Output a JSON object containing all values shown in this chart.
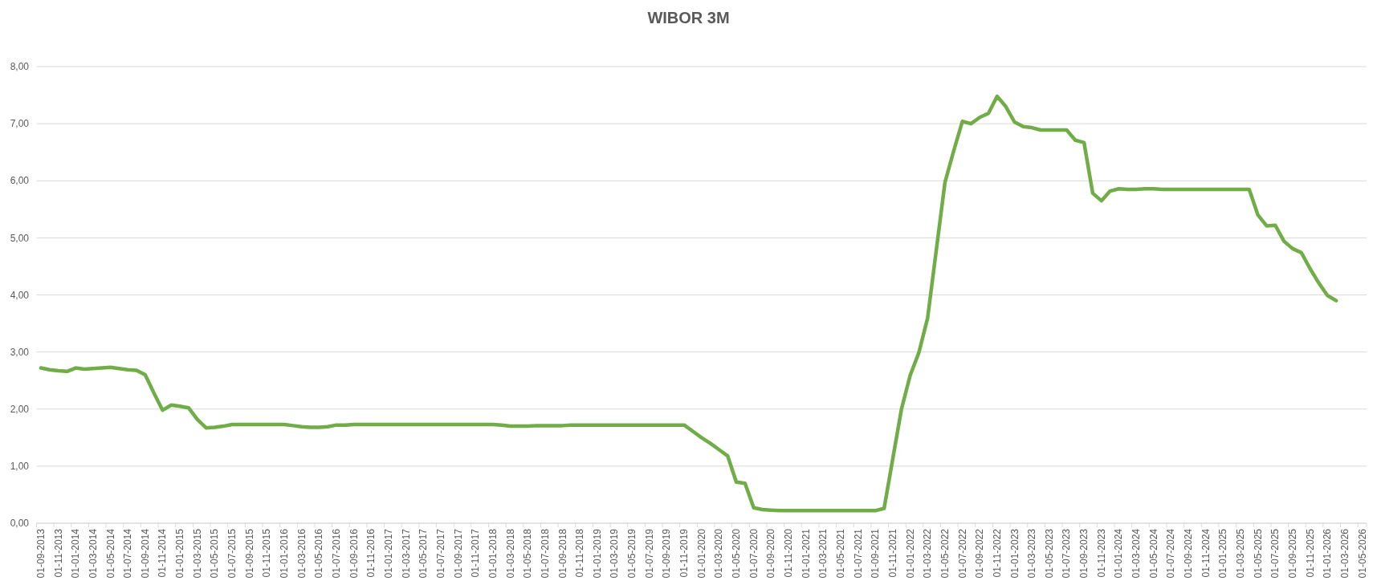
{
  "chart_data": {
    "type": "line",
    "title": "WIBOR 3M",
    "categories": [
      "01-09-2013",
      null,
      "01-11-2013",
      null,
      "01-01-2014",
      null,
      "01-03-2014",
      null,
      "01-05-2014",
      null,
      "01-07-2014",
      null,
      "01-09-2014",
      null,
      "01-11-2014",
      null,
      "01-01-2015",
      null,
      "01-03-2015",
      null,
      "01-05-2015",
      null,
      "01-07-2015",
      null,
      "01-09-2015",
      null,
      "01-11-2015",
      null,
      "01-01-2016",
      null,
      "01-03-2016",
      null,
      "01-05-2016",
      null,
      "01-07-2016",
      null,
      "01-09-2016",
      null,
      "01-11-2016",
      null,
      "01-01-2017",
      null,
      "01-03-2017",
      null,
      "01-05-2017",
      null,
      "01-07-2017",
      null,
      "01-09-2017",
      null,
      "01-11-2017",
      null,
      "01-01-2018",
      null,
      "01-03-2018",
      null,
      "01-05-2018",
      null,
      "01-07-2018",
      null,
      "01-09-2018",
      null,
      "01-11-2018",
      null,
      "01-01-2019",
      null,
      "01-03-2019",
      null,
      "01-05-2019",
      null,
      "01-07-2019",
      null,
      "01-09-2019",
      null,
      "01-11-2019",
      null,
      "01-01-2020",
      null,
      "01-03-2020",
      null,
      "01-05-2020",
      null,
      "01-07-2020",
      null,
      "01-09-2020",
      null,
      "01-11-2020",
      null,
      "01-01-2021",
      null,
      "01-03-2021",
      null,
      "01-05-2021",
      null,
      "01-07-2021",
      null,
      "01-09-2021",
      null,
      "01-11-2021",
      null,
      "01-01-2022",
      null,
      "01-03-2022",
      null,
      "01-05-2022",
      null,
      "01-07-2022",
      null,
      "01-09-2022",
      null,
      "01-11-2022",
      null,
      "01-01-2023",
      null,
      "01-03-2023",
      null,
      "01-05-2023",
      null,
      "01-07-2023",
      null,
      "01-09-2023",
      null,
      "01-11-2023",
      null,
      "01-01-2024",
      null,
      "01-03-2024",
      null,
      "01-05-2024",
      null,
      "01-07-2024",
      null,
      "01-09-2024",
      null,
      "01-11-2024",
      null,
      "01-01-2025",
      null,
      "01-03-2025",
      null,
      "01-05-2025",
      null,
      "01-07-2025",
      null,
      "01-09-2025",
      null,
      "01-11-2025",
      null,
      "01-01-2026",
      null,
      "01-03-2026",
      null,
      "01-05-2026"
    ],
    "series": [
      {
        "color": "#70ad47",
        "values": [
          2.72,
          2.69,
          2.67,
          2.66,
          2.72,
          2.7,
          2.71,
          2.72,
          2.73,
          2.71,
          2.69,
          2.68,
          2.6,
          2.28,
          1.98,
          2.07,
          2.05,
          2.02,
          1.82,
          1.67,
          1.68,
          1.7,
          1.73,
          1.73,
          1.73,
          1.73,
          1.73,
          1.73,
          1.73,
          1.71,
          1.69,
          1.68,
          1.68,
          1.69,
          1.72,
          1.72,
          1.73,
          1.73,
          1.73,
          1.73,
          1.73,
          1.73,
          1.73,
          1.73,
          1.73,
          1.73,
          1.73,
          1.73,
          1.73,
          1.73,
          1.73,
          1.73,
          1.73,
          1.72,
          1.7,
          1.7,
          1.7,
          1.71,
          1.71,
          1.71,
          1.71,
          1.72,
          1.72,
          1.72,
          1.72,
          1.72,
          1.72,
          1.72,
          1.72,
          1.72,
          1.72,
          1.72,
          1.72,
          1.72,
          1.72,
          1.61,
          1.5,
          1.4,
          1.29,
          1.18,
          0.72,
          0.7,
          0.27,
          0.24,
          0.23,
          0.22,
          0.22,
          0.22,
          0.22,
          0.22,
          0.22,
          0.22,
          0.22,
          0.22,
          0.22,
          0.22,
          0.22,
          0.26,
          1.13,
          2.0,
          2.59,
          2.99,
          3.59,
          4.78,
          5.97,
          6.52,
          7.04,
          7.0,
          7.11,
          7.18,
          7.48,
          7.3,
          7.03,
          6.95,
          6.93,
          6.89,
          6.89,
          6.89,
          6.89,
          6.71,
          6.67,
          5.78,
          5.65,
          5.82,
          5.86,
          5.85,
          5.85,
          5.86,
          5.86,
          5.85,
          5.85,
          5.85,
          5.85,
          5.85,
          5.85,
          5.85,
          5.85,
          5.85,
          5.85,
          5.85,
          5.4,
          5.21,
          5.22,
          4.94,
          4.81,
          4.74,
          4.46,
          4.21,
          3.99,
          3.9,
          null,
          null,
          null
        ]
      }
    ],
    "ylim": [
      0,
      8
    ],
    "yticks": [
      {
        "value": 0,
        "label": "0,00"
      },
      {
        "value": 1,
        "label": "1,00"
      },
      {
        "value": 2,
        "label": "2,00"
      },
      {
        "value": 3,
        "label": "3,00"
      },
      {
        "value": 4,
        "label": "4,00"
      },
      {
        "value": 5,
        "label": "5,00"
      },
      {
        "value": 6,
        "label": "6,00"
      },
      {
        "value": 7,
        "label": "7,00"
      },
      {
        "value": 8,
        "label": "8,00"
      }
    ],
    "grid": "y"
  }
}
